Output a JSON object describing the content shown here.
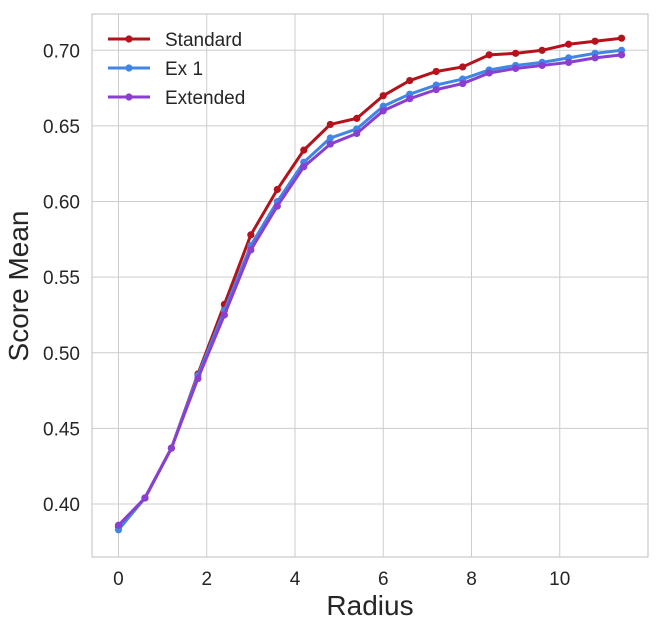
{
  "chart_data": {
    "type": "line",
    "title": "",
    "xlabel": "Radius",
    "ylabel": "Score Mean",
    "xlim": [
      -0.6,
      12.0
    ],
    "ylim": [
      0.365,
      0.724
    ],
    "xticks": [
      0,
      2,
      4,
      6,
      8,
      10
    ],
    "xtick_labels": [
      "0",
      "2",
      "4",
      "6",
      "8",
      "10"
    ],
    "yticks": [
      0.4,
      0.45,
      0.5,
      0.55,
      0.6,
      0.65,
      0.7
    ],
    "ytick_labels": [
      "0.40",
      "0.45",
      "0.50",
      "0.55",
      "0.60",
      "0.65",
      "0.70"
    ],
    "grid": true,
    "legend_position": "top-left",
    "x": [
      0,
      0.6,
      1.2,
      1.8,
      2.4,
      3.0,
      3.6,
      4.2,
      4.8,
      5.4,
      6.0,
      6.6,
      7.2,
      7.8,
      8.4,
      9.0,
      9.6,
      10.2,
      10.8,
      11.4
    ],
    "series": [
      {
        "name": "Standard",
        "color": "#b5121b",
        "values": [
          0.385,
          0.404,
          0.437,
          0.486,
          0.532,
          0.578,
          0.608,
          0.634,
          0.651,
          0.655,
          0.67,
          0.68,
          0.686,
          0.689,
          0.697,
          0.698,
          0.7,
          0.704,
          0.706,
          0.708
        ]
      },
      {
        "name": "Ex 1",
        "color": "#3f86e6",
        "values": [
          0.383,
          0.404,
          0.437,
          0.485,
          0.528,
          0.571,
          0.6,
          0.626,
          0.642,
          0.648,
          0.663,
          0.671,
          0.677,
          0.681,
          0.687,
          0.69,
          0.692,
          0.695,
          0.698,
          0.7
        ]
      },
      {
        "name": "Extended",
        "color": "#8a3fd1",
        "values": [
          0.386,
          0.404,
          0.437,
          0.483,
          0.525,
          0.568,
          0.597,
          0.623,
          0.638,
          0.645,
          0.66,
          0.668,
          0.674,
          0.678,
          0.685,
          0.688,
          0.69,
          0.692,
          0.695,
          0.697
        ]
      }
    ]
  }
}
